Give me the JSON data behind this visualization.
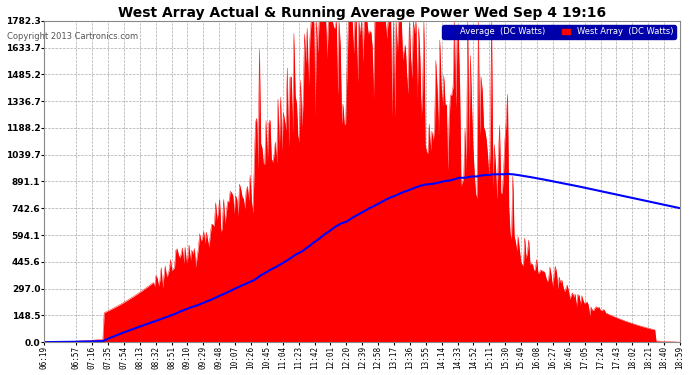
{
  "title": "West Array Actual & Running Average Power Wed Sep 4 19:16",
  "copyright": "Copyright 2013 Cartronics.com",
  "legend_avg": "Average  (DC Watts)",
  "legend_west": "West Array  (DC Watts)",
  "ylabel_ticks": [
    0.0,
    148.5,
    297.0,
    445.6,
    594.1,
    742.6,
    891.1,
    1039.7,
    1188.2,
    1336.7,
    1485.2,
    1633.7,
    1782.3
  ],
  "ymax": 1782.3,
  "ymin": 0.0,
  "bg_color": "#ffffff",
  "plot_bg_color": "#ffffff",
  "title_color": "#000000",
  "grid_color": "#aaaaaa",
  "west_array_color": "#ff0000",
  "avg_color": "#0000ff",
  "ytick_color": "#000000",
  "xtick_color": "#000000",
  "time_labels": [
    "06:19",
    "06:57",
    "07:16",
    "07:35",
    "07:54",
    "08:13",
    "08:32",
    "08:51",
    "09:10",
    "09:29",
    "09:48",
    "10:07",
    "10:26",
    "10:45",
    "11:04",
    "11:23",
    "11:42",
    "12:01",
    "12:20",
    "12:39",
    "12:58",
    "13:17",
    "13:36",
    "13:55",
    "14:14",
    "14:33",
    "14:52",
    "15:11",
    "15:30",
    "15:49",
    "16:08",
    "16:27",
    "16:46",
    "17:05",
    "17:24",
    "17:43",
    "18:02",
    "18:21",
    "18:40",
    "18:59"
  ],
  "n_labels": 40,
  "legend_avg_bg": "#0000aa",
  "legend_west_bg": "#cc0000"
}
